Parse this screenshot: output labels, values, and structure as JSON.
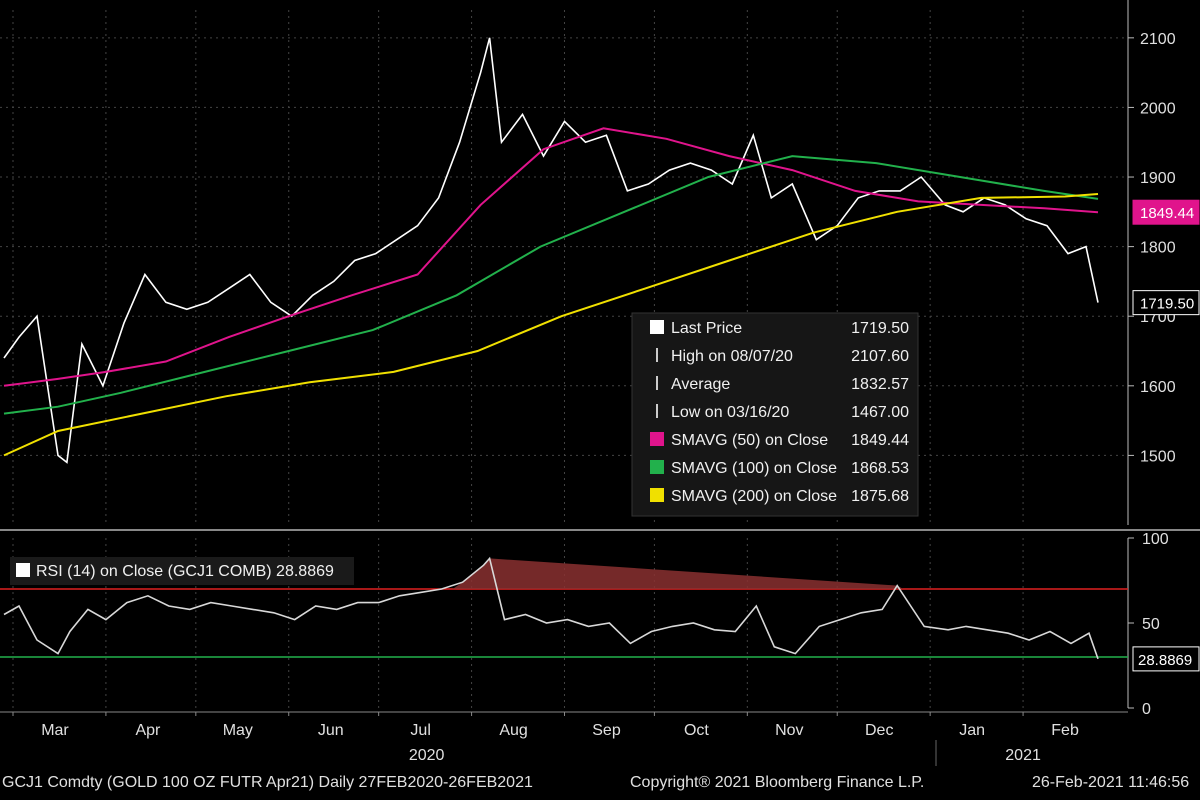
{
  "chart_data": {
    "type": "line",
    "price_panel": {
      "ylim": [
        1400,
        2140
      ],
      "y_ticks": [
        "2100",
        "2000",
        "1900",
        "1800",
        "1700",
        "1600",
        "1500"
      ],
      "grid": true,
      "legend": {
        "placement": "center-right",
        "rows": [
          {
            "label": "Last Price",
            "value": "1719.50",
            "icon": "white-square",
            "color": "#ffffff"
          },
          {
            "label": "High on 08/07/20",
            "value": "2107.60",
            "icon": "high-marker-icon",
            "color": "#cccccc"
          },
          {
            "label": "Average",
            "value": "1832.57",
            "icon": "average-marker-icon",
            "color": "#cccccc"
          },
          {
            "label": "Low on 03/16/20",
            "value": "1467.00",
            "icon": "low-marker-icon",
            "color": "#cccccc"
          },
          {
            "label": "SMAVG (50)  on Close",
            "value": "1849.44",
            "icon": "magenta-square",
            "color": "#e0148c"
          },
          {
            "label": "SMAVG (100)  on Close",
            "value": "1868.53",
            "icon": "green-square",
            "color": "#22b14c"
          },
          {
            "label": "SMAVG (200)  on Close",
            "value": "1875.68",
            "icon": "yellow-square",
            "color": "#f0e000"
          }
        ]
      },
      "badges": [
        {
          "text": "1849.44",
          "value": 1849.44,
          "color": "#e0148c"
        },
        {
          "text": "1719.50",
          "value": 1719.5,
          "color": "#ffffff"
        }
      ],
      "series": [
        {
          "name": "Last Price",
          "color": "#ffffff",
          "x": [
            "2020-02-27",
            "2020-03-03",
            "2020-03-09",
            "2020-03-16",
            "2020-03-19",
            "2020-03-24",
            "2020-03-31",
            "2020-04-07",
            "2020-04-14",
            "2020-04-21",
            "2020-04-28",
            "2020-05-05",
            "2020-05-12",
            "2020-05-19",
            "2020-05-26",
            "2020-06-02",
            "2020-06-09",
            "2020-06-16",
            "2020-06-23",
            "2020-06-30",
            "2020-07-07",
            "2020-07-14",
            "2020-07-21",
            "2020-07-28",
            "2020-08-04",
            "2020-08-07",
            "2020-08-11",
            "2020-08-18",
            "2020-08-25",
            "2020-09-01",
            "2020-09-08",
            "2020-09-15",
            "2020-09-22",
            "2020-09-29",
            "2020-10-06",
            "2020-10-13",
            "2020-10-20",
            "2020-10-27",
            "2020-11-03",
            "2020-11-09",
            "2020-11-16",
            "2020-11-24",
            "2020-12-01",
            "2020-12-08",
            "2020-12-15",
            "2020-12-22",
            "2020-12-29",
            "2021-01-06",
            "2021-01-12",
            "2021-01-19",
            "2021-01-26",
            "2021-02-02",
            "2021-02-09",
            "2021-02-16",
            "2021-02-22",
            "2021-02-26"
          ],
          "values": [
            1640,
            1670,
            1700,
            1500,
            1490,
            1660,
            1600,
            1690,
            1760,
            1720,
            1710,
            1720,
            1740,
            1760,
            1720,
            1700,
            1730,
            1750,
            1780,
            1790,
            1810,
            1830,
            1870,
            1950,
            2050,
            2100,
            1950,
            1990,
            1930,
            1980,
            1950,
            1960,
            1880,
            1890,
            1910,
            1920,
            1910,
            1890,
            1960,
            1870,
            1890,
            1810,
            1830,
            1870,
            1880,
            1880,
            1900,
            1860,
            1850,
            1870,
            1860,
            1840,
            1830,
            1790,
            1800,
            1719.5
          ]
        },
        {
          "name": "SMAVG (50)  on Close",
          "color": "#e0148c",
          "x": [
            "2020-02-27",
            "2020-03-16",
            "2020-04-01",
            "2020-04-21",
            "2020-05-12",
            "2020-06-01",
            "2020-06-22",
            "2020-07-14",
            "2020-08-04",
            "2020-08-25",
            "2020-09-14",
            "2020-10-05",
            "2020-10-26",
            "2020-11-16",
            "2020-12-07",
            "2020-12-28",
            "2021-01-18",
            "2021-02-08",
            "2021-02-26"
          ],
          "values": [
            1600,
            1610,
            1620,
            1635,
            1670,
            1700,
            1730,
            1760,
            1860,
            1940,
            1970,
            1955,
            1930,
            1910,
            1880,
            1865,
            1860,
            1855,
            1849.44
          ]
        },
        {
          "name": "SMAVG (100)  on Close",
          "color": "#22b14c",
          "x": [
            "2020-02-27",
            "2020-03-16",
            "2020-04-06",
            "2020-05-04",
            "2020-06-01",
            "2020-06-29",
            "2020-07-27",
            "2020-08-24",
            "2020-09-21",
            "2020-10-19",
            "2020-11-16",
            "2020-12-14",
            "2021-01-11",
            "2021-02-08",
            "2021-02-26"
          ],
          "values": [
            1560,
            1570,
            1590,
            1620,
            1650,
            1680,
            1730,
            1800,
            1850,
            1900,
            1930,
            1920,
            1900,
            1880,
            1868.53
          ]
        },
        {
          "name": "SMAVG (200)  on Close",
          "color": "#f0e000",
          "x": [
            "2020-02-27",
            "2020-03-16",
            "2020-04-13",
            "2020-05-11",
            "2020-06-08",
            "2020-07-06",
            "2020-08-03",
            "2020-08-31",
            "2020-09-28",
            "2020-10-26",
            "2020-11-23",
            "2020-12-21",
            "2021-01-18",
            "2021-02-15",
            "2021-02-26"
          ],
          "values": [
            1500,
            1535,
            1560,
            1585,
            1605,
            1620,
            1650,
            1700,
            1740,
            1780,
            1820,
            1850,
            1870,
            1872,
            1875.68
          ]
        }
      ],
      "high_label_date": "2020-08-07",
      "low_label_date": "2020-03-16"
    },
    "rsi_panel": {
      "title": "RSI (14)  on Close (GCJ1 COMB) 28.8869",
      "ylim": [
        0,
        100
      ],
      "y_ticks": [
        "100",
        "50",
        "0"
      ],
      "overbought": 70,
      "oversold": 30,
      "overbought_color": "#e02020",
      "oversold_color": "#22b14c",
      "badge": {
        "text": "28.8869",
        "value": 28.8869
      },
      "series": [
        {
          "name": "RSI (14)  on Close (GCJ1 COMB)",
          "color": "#d8d8d8",
          "x": [
            "2020-02-27",
            "2020-03-03",
            "2020-03-09",
            "2020-03-16",
            "2020-03-20",
            "2020-03-26",
            "2020-04-01",
            "2020-04-08",
            "2020-04-15",
            "2020-04-22",
            "2020-04-29",
            "2020-05-06",
            "2020-05-13",
            "2020-05-20",
            "2020-05-27",
            "2020-06-03",
            "2020-06-10",
            "2020-06-17",
            "2020-06-24",
            "2020-07-01",
            "2020-07-08",
            "2020-07-15",
            "2020-07-22",
            "2020-07-29",
            "2020-08-05",
            "2020-08-07",
            "2020-08-12",
            "2020-08-19",
            "2020-08-26",
            "2020-09-02",
            "2020-09-09",
            "2020-09-16",
            "2020-09-23",
            "2020-09-30",
            "2020-10-07",
            "2020-10-14",
            "2020-10-21",
            "2020-10-28",
            "2020-11-04",
            "2020-11-10",
            "2020-11-17",
            "2020-11-25",
            "2020-12-02",
            "2020-12-09",
            "2020-12-16",
            "2020-12-21",
            "2020-12-30",
            "2021-01-07",
            "2021-01-13",
            "2021-01-20",
            "2021-01-27",
            "2021-02-03",
            "2021-02-10",
            "2021-02-17",
            "2021-02-23",
            "2021-02-26"
          ],
          "values": [
            55,
            60,
            40,
            32,
            45,
            58,
            52,
            62,
            66,
            60,
            58,
            62,
            60,
            58,
            56,
            52,
            60,
            58,
            62,
            62,
            66,
            68,
            70,
            74,
            84,
            88,
            52,
            55,
            50,
            52,
            48,
            50,
            38,
            45,
            48,
            50,
            46,
            45,
            60,
            36,
            32,
            48,
            52,
            56,
            58,
            72,
            48,
            46,
            48,
            46,
            44,
            40,
            45,
            38,
            44,
            28.8869
          ]
        }
      ]
    },
    "x_axis": {
      "ticks": [
        {
          "label": "Mar",
          "date": "2020-03-01"
        },
        {
          "label": "Apr",
          "date": "2020-04-01"
        },
        {
          "label": "May",
          "date": "2020-05-01"
        },
        {
          "label": "Jun",
          "date": "2020-06-01"
        },
        {
          "label": "Jul",
          "date": "2020-07-01"
        },
        {
          "label": "Aug",
          "date": "2020-08-01"
        },
        {
          "label": "Sep",
          "date": "2020-09-01"
        },
        {
          "label": "Oct",
          "date": "2020-10-01"
        },
        {
          "label": "Nov",
          "date": "2020-11-01"
        },
        {
          "label": "Dec",
          "date": "2020-12-01"
        },
        {
          "label": "Jan",
          "date": "2021-01-01"
        },
        {
          "label": "Feb",
          "date": "2021-02-01"
        }
      ],
      "years": [
        {
          "label": "2020",
          "date": "2020-07-17"
        },
        {
          "label": "2021",
          "date": "2021-02-01"
        }
      ],
      "range": [
        "2020-02-27",
        "2021-02-26"
      ]
    }
  },
  "footer": {
    "security": "GCJ1 Comdty (GOLD 100 OZ FUTR  Apr21)  Daily 27FEB2020-26FEB2021",
    "copyright": "Copyright® 2021 Bloomberg Finance L.P.",
    "timestamp": "26-Feb-2021 11:46:56"
  }
}
